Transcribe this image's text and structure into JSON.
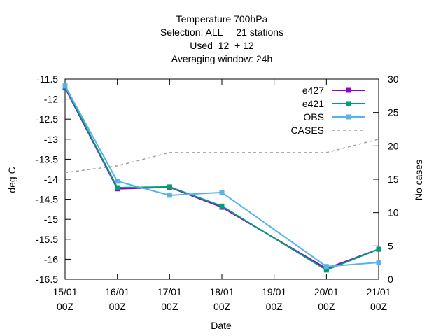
{
  "chart_data": {
    "type": "line",
    "title": [
      "Temperature 700hPa",
      "Selection: ALL     21 stations",
      "Used  12  + 12",
      "Averaging window: 24h"
    ],
    "xlabel": "Date",
    "ylabel": "deg C",
    "y2label": "No cases",
    "x": [
      "15/01 00Z",
      "16/01 00Z",
      "17/01 00Z",
      "18/01 00Z",
      "19/01 00Z",
      "20/01 00Z",
      "21/01 00Z"
    ],
    "xticks": [
      {
        "top": "15/01",
        "bottom": "00Z"
      },
      {
        "top": "16/01",
        "bottom": "00Z"
      },
      {
        "top": "17/01",
        "bottom": "00Z"
      },
      {
        "top": "18/01",
        "bottom": "00Z"
      },
      {
        "top": "19/01",
        "bottom": "00Z"
      },
      {
        "top": "20/01",
        "bottom": "00Z"
      },
      {
        "top": "21/01",
        "bottom": "00Z"
      }
    ],
    "ylim": [
      -16.5,
      -11.5
    ],
    "yticks": [
      "-11.5",
      "-12",
      "-12.5",
      "-13",
      "-13.5",
      "-14",
      "-14.5",
      "-15",
      "-15.5",
      "-16",
      "-16.5"
    ],
    "y2lim": [
      0,
      30
    ],
    "y2ticks": [
      "30",
      "25",
      "20",
      "15",
      "10",
      "5",
      "0"
    ],
    "legend_position": "top-right",
    "grid": false,
    "series": [
      {
        "name": "e427",
        "color": "#9400d3",
        "axis": "y",
        "marker": "square",
        "dash": false,
        "x": [
          0,
          1,
          2,
          3,
          5,
          6
        ],
        "values": [
          -11.72,
          -14.24,
          -14.2,
          -14.7,
          -16.23,
          -15.75
        ]
      },
      {
        "name": "e421",
        "color": "#009e73",
        "axis": "y",
        "marker": "square",
        "dash": false,
        "x": [
          0,
          1,
          2,
          3,
          5,
          6
        ],
        "values": [
          -11.69,
          -14.21,
          -14.19,
          -14.67,
          -16.27,
          -15.75
        ]
      },
      {
        "name": "OBS",
        "color": "#56b4e9",
        "axis": "y",
        "marker": "square",
        "dash": false,
        "x": [
          0,
          1,
          2,
          3,
          5,
          6
        ],
        "values": [
          -11.67,
          -14.05,
          -14.4,
          -14.33,
          -16.18,
          -16.08
        ]
      },
      {
        "name": "CASES",
        "color": "#a0a0a0",
        "axis": "y2",
        "marker": "none",
        "dash": true,
        "x": [
          0,
          1,
          2,
          3,
          5,
          6
        ],
        "values": [
          16,
          17,
          19,
          19,
          19,
          21
        ]
      }
    ]
  }
}
